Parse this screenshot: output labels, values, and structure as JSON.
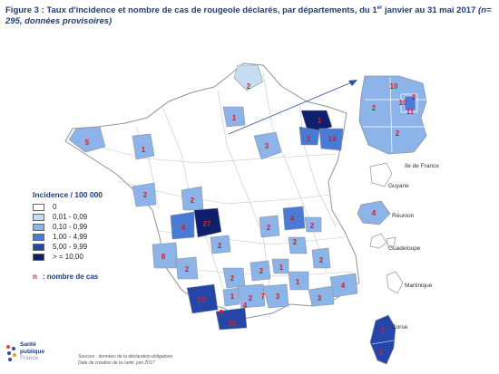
{
  "title": {
    "main": "Figure 3 : Taux d'incidence et nombre de cas de rougeole déclarés, par départements, du 1",
    "sup": "er",
    "after_sup": " janvier au 31 mai 2017 ",
    "italic_part": "(n= 295, données provisoires)"
  },
  "legend": {
    "title": "Incidence / 100 000",
    "items": [
      {
        "label": "0",
        "color": "#ffffff"
      },
      {
        "label": "0,01 - 0,09",
        "color": "#c6dcf2"
      },
      {
        "label": "0,10 - 0,99",
        "color": "#8cb4e8"
      },
      {
        "label": "1,00 - 4,99",
        "color": "#4a7bd4"
      },
      {
        "label": "5,00 - 9,99",
        "color": "#2546a8"
      },
      {
        "label": "> = 10,00",
        "color": "#0f1f6e"
      }
    ],
    "note_symbol": "n",
    "note_text": ": nombre de cas"
  },
  "overseas": {
    "ile_de_france": "Ile de France",
    "guyane": "Guyane",
    "reunion": "Réunion",
    "guadeloupe": "Guadeloupe",
    "martinique": "Martinique",
    "corse": "Corse"
  },
  "case_labels": [
    "2",
    "1",
    "5",
    "1",
    "3",
    "3",
    "14",
    "1",
    "2",
    "2",
    "4",
    "27",
    "8",
    "2",
    "2",
    "2",
    "2",
    "2",
    "2",
    "2",
    "4",
    "1",
    "1",
    "2",
    "3",
    "3",
    "4",
    "2",
    "1",
    "23",
    "7",
    "5",
    "4",
    "21",
    "10",
    "10",
    "2",
    "2",
    "11",
    "2",
    "4",
    "2",
    "2"
  ],
  "logo": {
    "line1": "Santé",
    "line2": "publique",
    "line3": "France"
  },
  "sources": {
    "line1": "Sources : données de la déclaration obligatoire",
    "line2": "Date de création de la carte: juin 2017"
  },
  "colors": {
    "boundary": "#9aa0a8",
    "case_text": "#d42020",
    "arrow": "#2b4f9e"
  }
}
